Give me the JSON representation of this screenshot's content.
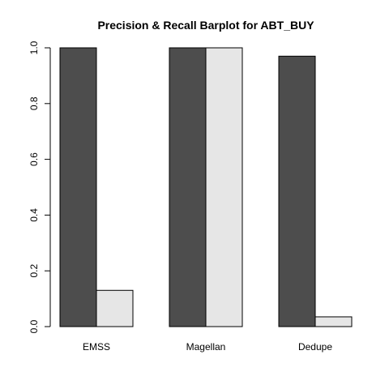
{
  "chart_data": {
    "type": "bar",
    "title": "Precision & Recall Barplot for ABT_BUY",
    "xlabel": "",
    "ylabel": "",
    "categories": [
      "EMSS",
      "Magellan",
      "Dedupe"
    ],
    "series": [
      {
        "values": [
          1.0,
          1.0,
          0.97
        ],
        "color": "#4d4d4d"
      },
      {
        "values": [
          0.13,
          1.0,
          0.035
        ],
        "color": "#e6e6e6"
      }
    ],
    "ylim": [
      0,
      1
    ],
    "yticks": [
      "0.0",
      "0.2",
      "0.4",
      "0.6",
      "0.8",
      "1.0"
    ],
    "grid": false,
    "legend": "none"
  }
}
